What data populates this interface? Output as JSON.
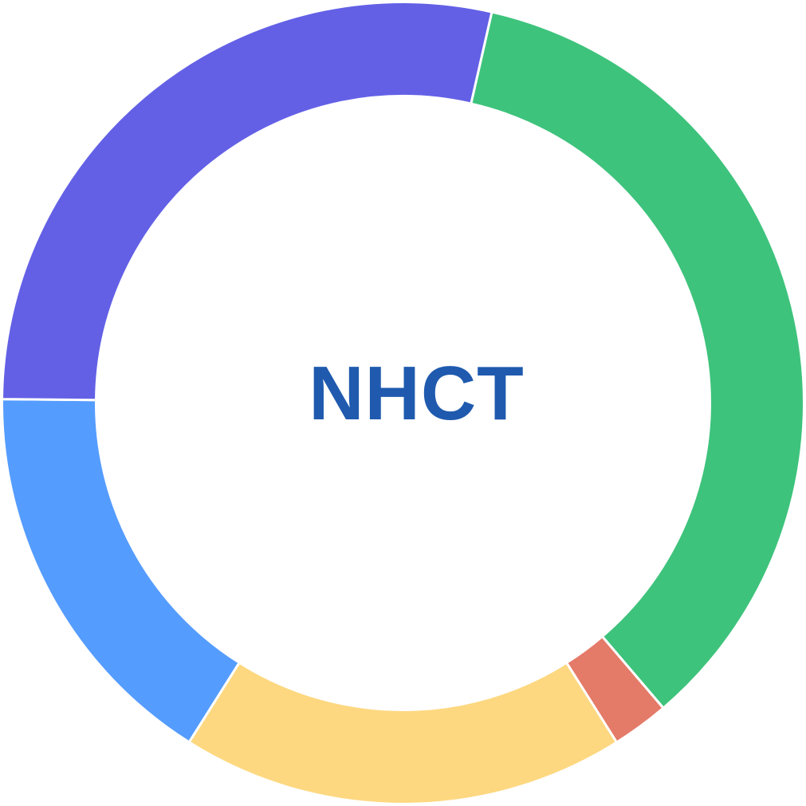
{
  "chart_data": {
    "type": "pie",
    "variant": "donut",
    "center_text": "NHCT",
    "center_text_color": "#1f5aae",
    "start_angle_deg": 12.8,
    "direction": "clockwise",
    "slice_border_color": "#ffffff",
    "slices": [
      {
        "value": 35.2,
        "color": "#3ec37c"
      },
      {
        "value": 2.3,
        "color": "#e47a68"
      },
      {
        "value": 17.9,
        "color": "#fdd880"
      },
      {
        "value": 16.2,
        "color": "#559cff"
      },
      {
        "value": 28.4,
        "color": "#6360e6"
      }
    ]
  }
}
